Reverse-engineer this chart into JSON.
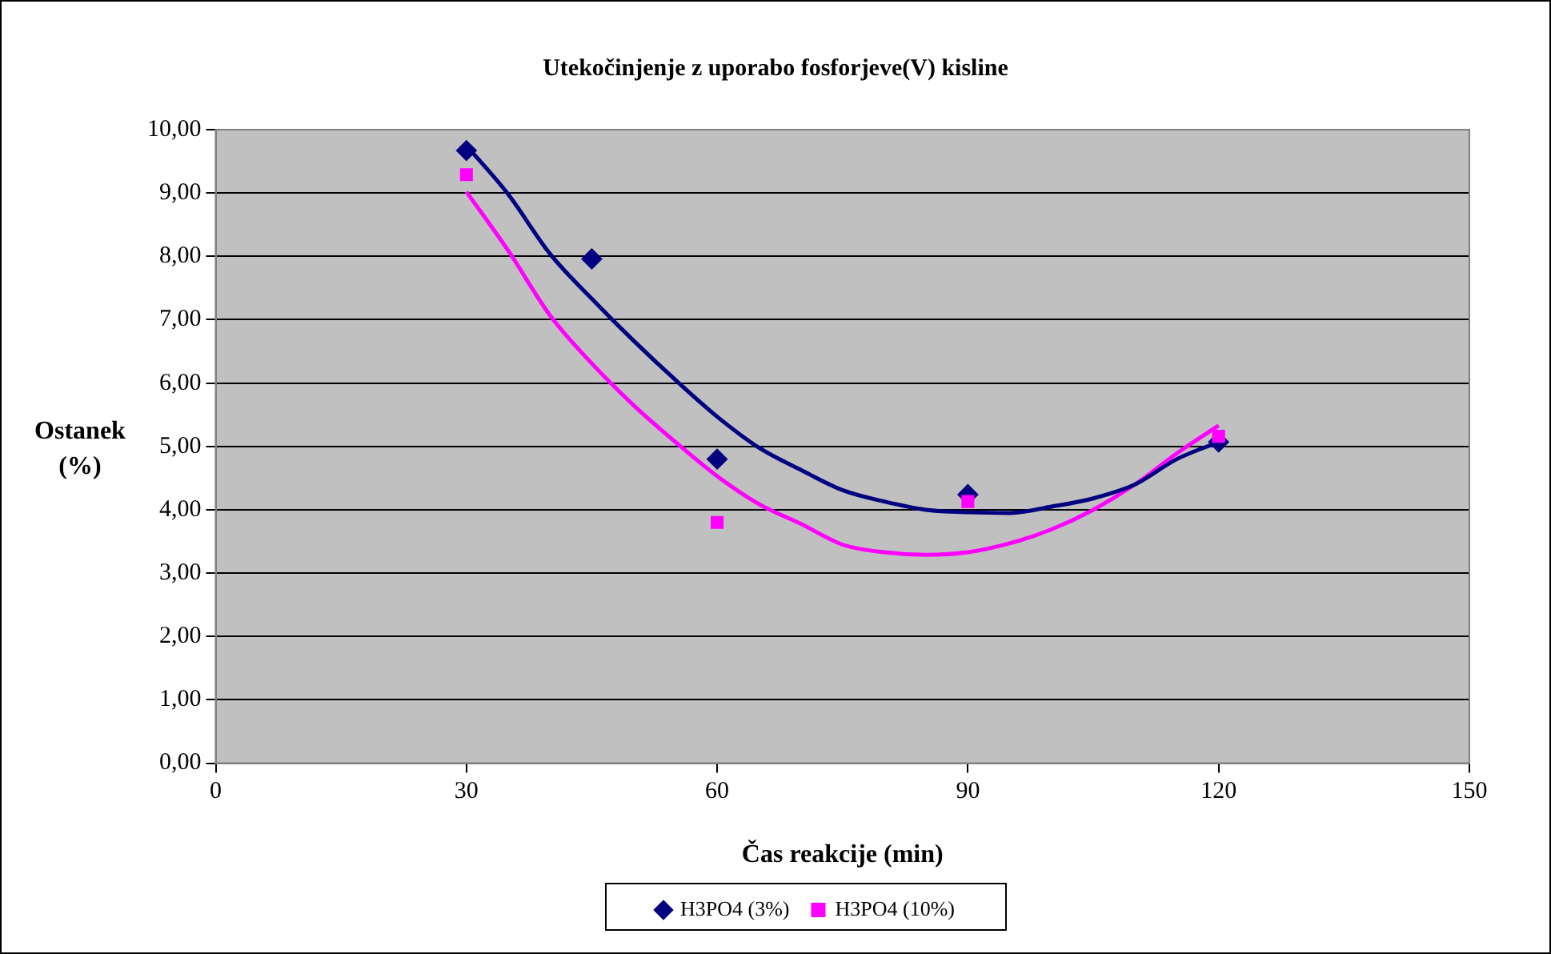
{
  "chart_data": {
    "type": "scatter",
    "title": "Utekočinjenje z uporabo fosforjeve(V) kisline",
    "xlabel": "Čas reakcije (min)",
    "ylabel": "Ostanek (%)",
    "xlim": [
      0,
      150
    ],
    "xticks": [
      0,
      30,
      60,
      90,
      120,
      150
    ],
    "ylim": [
      0,
      10
    ],
    "yticks": [
      {
        "value": 0,
        "label": "0,00"
      },
      {
        "value": 1,
        "label": "1,00"
      },
      {
        "value": 2,
        "label": "2,00"
      },
      {
        "value": 3,
        "label": "3,00"
      },
      {
        "value": 4,
        "label": "4,00"
      },
      {
        "value": 5,
        "label": "5,00"
      },
      {
        "value": 6,
        "label": "6,00"
      },
      {
        "value": 7,
        "label": "7,00"
      },
      {
        "value": 8,
        "label": "8,00"
      },
      {
        "value": 9,
        "label": "9,00"
      },
      {
        "value": 10,
        "label": "10,00"
      }
    ],
    "grid": "y",
    "legend": "bottom",
    "series": [
      {
        "name": "H3PO4 (3%)",
        "color": "#000080",
        "marker": "diamond",
        "x": [
          30,
          45,
          60,
          90,
          120
        ],
        "values": [
          9.67,
          7.96,
          4.8,
          4.24,
          5.07
        ]
      },
      {
        "name": "H3PO4 (10%)",
        "color": "#ff00ff",
        "marker": "square",
        "x": [
          30,
          60,
          90,
          120
        ],
        "values": [
          9.29,
          3.8,
          4.13,
          5.16
        ]
      },
      {
        "type": "line",
        "color": "#000080",
        "marker": "none",
        "x": [
          30,
          35,
          40,
          45,
          50,
          55,
          60,
          65,
          70,
          75,
          80,
          85,
          90,
          95,
          100,
          105,
          110,
          115,
          120
        ],
        "values": [
          9.75,
          8.98,
          8.04,
          7.33,
          6.67,
          6.05,
          5.47,
          4.98,
          4.63,
          4.31,
          4.13,
          4.0,
          3.96,
          3.95,
          4.05,
          4.18,
          4.4,
          4.8,
          5.07
        ]
      },
      {
        "type": "line",
        "color": "#ff00ff",
        "marker": "none",
        "x": [
          30,
          35,
          40,
          45,
          50,
          55,
          60,
          65,
          70,
          75,
          80,
          85,
          90,
          95,
          100,
          105,
          110,
          115,
          120
        ],
        "values": [
          9.02,
          8.09,
          7.07,
          6.31,
          5.65,
          5.07,
          4.53,
          4.09,
          3.78,
          3.45,
          3.33,
          3.29,
          3.33,
          3.47,
          3.69,
          4.0,
          4.4,
          4.89,
          5.33
        ]
      }
    ]
  }
}
